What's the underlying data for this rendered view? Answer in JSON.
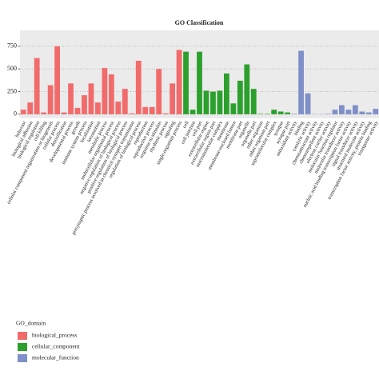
{
  "chart_data": {
    "type": "bar",
    "title": "GO Classification",
    "categories": [
      "behavior",
      "biological adhesion",
      "biological regulation",
      "cell killing",
      "cellular component organization or biogenesis",
      "cellular process",
      "detoxification",
      "developmental process",
      "growth",
      "immune system process",
      "localization",
      "locomotion",
      "metabolic process",
      "multicellular organismal process",
      "negative regulation of biological process",
      "positive regulation of biological process",
      "presynaptic process involved in chemical synaptic transmission",
      "regulation of biological process",
      "reproduction",
      "reproductive process",
      "response to stimulus",
      "rhythmic process",
      "signaling",
      "single-organism process",
      "cell",
      "cell junction",
      "cell part",
      "extracellular region",
      "extracellular region part",
      "macromolecular complex",
      "membrane",
      "membrane-enclosed lumen",
      "membrane part",
      "organelle",
      "organelle part",
      "other organism",
      "other organism part",
      "supramolecular complex",
      "synapse",
      "synapse part",
      "antioxidant activity",
      "binding",
      "catalytic activity",
      "chemoattractant activity",
      "chemorepellent activity",
      "electron carrier activity",
      "molecular function regulator",
      "molecular transducer activity",
      "nucleic acid binding transcription factor activity",
      "signal transducer activity",
      "structural molecule activity",
      "transcription factor activity, protein binding",
      "transporter activity"
    ],
    "series": [
      {
        "name": "biological_process",
        "color": "#f26b6b",
        "values": [
          50,
          130,
          620,
          20,
          320,
          750,
          20,
          340,
          70,
          210,
          340,
          130,
          510,
          440,
          140,
          280,
          10,
          590,
          80,
          80,
          500,
          10,
          340,
          710,
          null,
          null,
          null,
          null,
          null,
          null,
          null,
          null,
          null,
          null,
          null,
          null,
          null,
          null,
          null,
          null,
          null,
          null,
          null,
          null,
          null,
          null,
          null,
          null,
          null,
          null,
          null,
          null,
          null
        ]
      },
      {
        "name": "cellular_component",
        "color": "#2ca02c",
        "values": [
          null,
          null,
          null,
          null,
          null,
          null,
          null,
          null,
          null,
          null,
          null,
          null,
          null,
          null,
          null,
          null,
          null,
          null,
          null,
          null,
          null,
          null,
          null,
          null,
          690,
          50,
          690,
          260,
          250,
          260,
          450,
          120,
          370,
          550,
          280,
          5,
          5,
          50,
          30,
          20,
          null,
          null,
          null,
          null,
          null,
          null,
          null,
          null,
          null,
          null,
          null,
          null,
          null
        ]
      },
      {
        "name": "molecular_function",
        "color": "#7f8fc8",
        "values": [
          null,
          null,
          null,
          null,
          null,
          null,
          null,
          null,
          null,
          null,
          null,
          null,
          null,
          null,
          null,
          null,
          null,
          null,
          null,
          null,
          null,
          null,
          null,
          null,
          null,
          null,
          null,
          null,
          null,
          null,
          null,
          null,
          null,
          null,
          null,
          null,
          null,
          null,
          null,
          null,
          5,
          700,
          230,
          2,
          2,
          5,
          50,
          100,
          50,
          100,
          30,
          20,
          60
        ]
      }
    ],
    "legend_title": "GO_domain",
    "ylim": [
      -45,
      925
    ],
    "yticks": [
      0,
      250,
      500,
      750
    ],
    "grid": true
  }
}
